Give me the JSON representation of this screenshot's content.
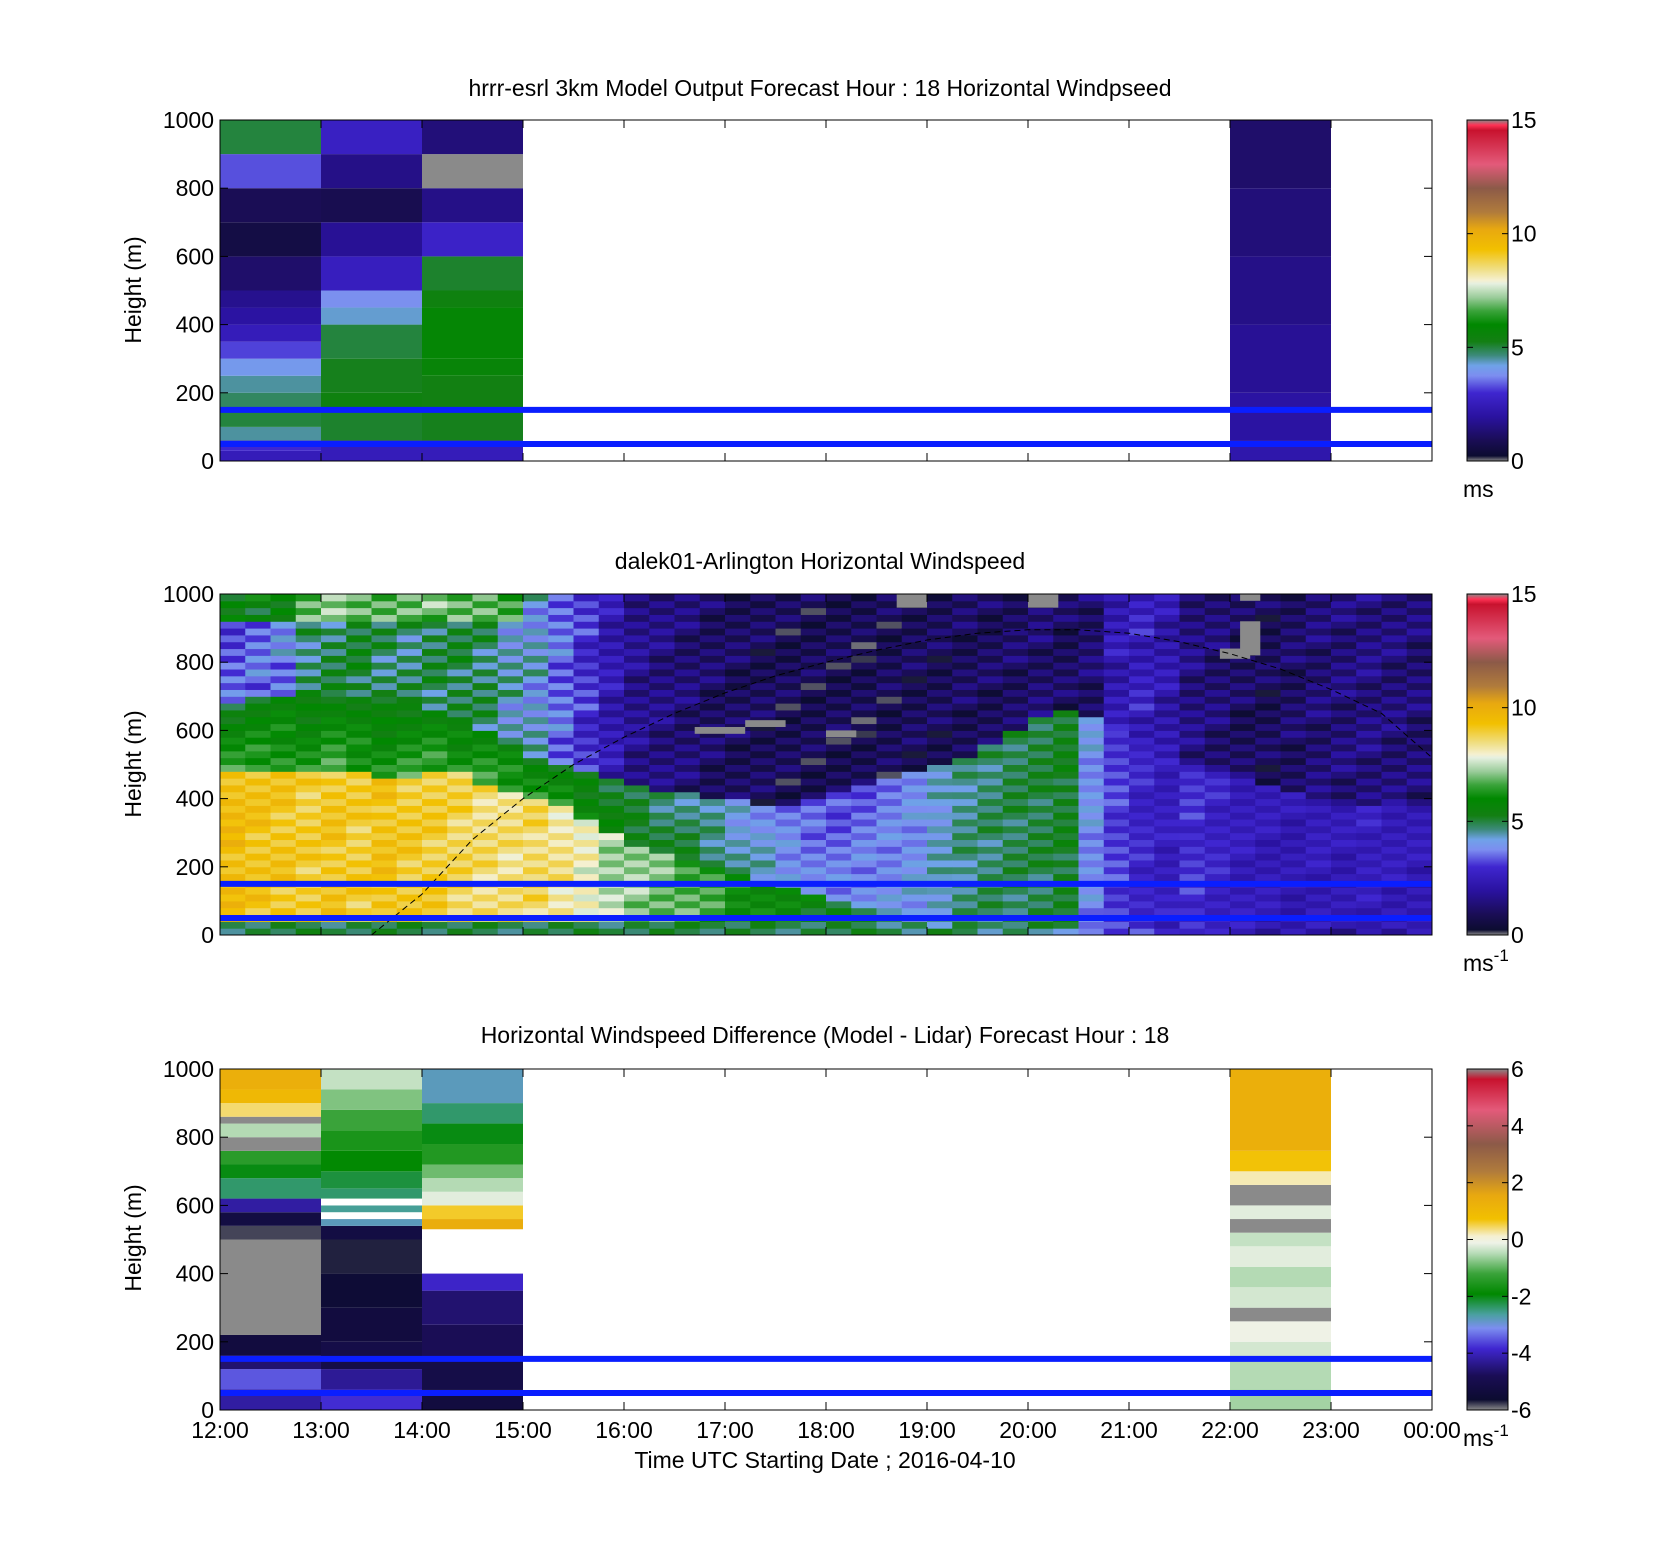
{
  "figure": {
    "xlabel": "Time UTC  Starting Date ; 2016-04-10",
    "xtick_labels": [
      "12:00",
      "13:00",
      "14:00",
      "15:00",
      "16:00",
      "17:00",
      "18:00",
      "19:00",
      "20:00",
      "21:00",
      "22:00",
      "23:00",
      "00:00"
    ]
  },
  "chart_data": [
    {
      "type": "heatmap",
      "title": "hrrr-esrl 3km Model Output   Forecast Hour : 18 Horizontal Windpseed",
      "ylabel": "Height (m)",
      "xlim": [
        "12:00",
        "00:00"
      ],
      "ylim": [
        0,
        1000
      ],
      "yticks": [
        0,
        200,
        400,
        600,
        800,
        1000
      ],
      "colorbar": {
        "range": [
          0,
          15
        ],
        "ticks": [
          0,
          5,
          10,
          15
        ],
        "unit_base": "ms",
        "unit_sup": ""
      },
      "reference_lines_m": [
        150,
        50
      ],
      "columns": [
        {
          "start": "12:00",
          "end": "13:00",
          "cells": [
            [
              0,
              30,
              2.5
            ],
            [
              30,
              60,
              3.0
            ],
            [
              60,
              100,
              4.5
            ],
            [
              100,
              150,
              5.0
            ],
            [
              150,
              200,
              4.8
            ],
            [
              200,
              250,
              4.5
            ],
            [
              250,
              300,
              4.0
            ],
            [
              300,
              350,
              3.2
            ],
            [
              350,
              400,
              2.5
            ],
            [
              400,
              450,
              2.0
            ],
            [
              450,
              500,
              1.7
            ],
            [
              500,
              600,
              1.2
            ],
            [
              600,
              700,
              0.6
            ],
            [
              700,
              800,
              0.9
            ],
            [
              800,
              900,
              3.3
            ],
            [
              900,
              1000,
              5.0
            ]
          ]
        },
        {
          "start": "13:00",
          "end": "14:00",
          "cells": [
            [
              0,
              60,
              2.5
            ],
            [
              60,
              150,
              5.1
            ],
            [
              150,
              200,
              5.4
            ],
            [
              200,
              300,
              5.2
            ],
            [
              300,
              400,
              5.0
            ],
            [
              400,
              450,
              4.3
            ],
            [
              450,
              500,
              3.8
            ],
            [
              500,
              600,
              2.6
            ],
            [
              600,
              700,
              1.8
            ],
            [
              700,
              800,
              0.8
            ],
            [
              800,
              900,
              1.6
            ],
            [
              900,
              1000,
              2.7
            ]
          ]
        },
        {
          "start": "14:00",
          "end": "15:00",
          "cells": [
            [
              0,
              60,
              2.5
            ],
            [
              60,
              150,
              5.2
            ],
            [
              150,
              250,
              5.3
            ],
            [
              250,
              300,
              5.7
            ],
            [
              300,
              450,
              5.8
            ],
            [
              450,
              500,
              5.4
            ],
            [
              500,
              600,
              5.1
            ],
            [
              600,
              700,
              2.8
            ],
            [
              700,
              800,
              1.6
            ],
            [
              800,
              900,
              -1
            ],
            [
              900,
              1000,
              1.4
            ]
          ]
        },
        {
          "start": "22:00",
          "end": "23:00",
          "cells": [
            [
              0,
              60,
              2.2
            ],
            [
              60,
              200,
              2.0
            ],
            [
              200,
              400,
              1.8
            ],
            [
              400,
              600,
              1.6
            ],
            [
              600,
              800,
              1.4
            ],
            [
              800,
              1000,
              1.2
            ]
          ]
        }
      ]
    },
    {
      "type": "heatmap",
      "title": "dalek01-Arlington  Horizontal Windspeed",
      "ylabel": "Height (m)",
      "xlim": [
        "12:00",
        "00:00"
      ],
      "ylim": [
        0,
        1000
      ],
      "yticks": [
        0,
        200,
        400,
        600,
        800,
        1000
      ],
      "colorbar": {
        "range": [
          0,
          15
        ],
        "ticks": [
          0,
          5,
          10,
          15
        ],
        "unit_base": "ms",
        "unit_sup": "-1"
      },
      "reference_lines_m": [
        150,
        50
      ],
      "time_height_profile": {
        "description_keys": [
          "hour",
          "columns"
        ],
        "hours": [
          "12:00",
          "12:15",
          "12:30",
          "12:45",
          "13:00",
          "13:15",
          "13:30",
          "13:45",
          "14:00",
          "14:15",
          "14:30",
          "14:45",
          "15:00",
          "15:15",
          "15:30",
          "15:45",
          "16:00",
          "16:15",
          "16:30",
          "16:45",
          "17:00",
          "17:15",
          "17:30",
          "17:45",
          "18:00",
          "18:15",
          "18:30",
          "18:45",
          "19:00",
          "19:15",
          "19:30",
          "19:45",
          "20:00",
          "20:15",
          "20:30",
          "20:45",
          "21:00",
          "21:15",
          "21:30",
          "21:45",
          "22:00",
          "22:15",
          "22:30",
          "22:45",
          "23:00",
          "23:15",
          "23:30",
          "23:45"
        ],
        "low_wind_top_m": [
          480,
          480,
          470,
          470,
          470,
          470,
          460,
          460,
          480,
          470,
          440,
          420,
          400,
          380,
          340,
          300,
          260,
          230,
          210,
          190,
          170,
          160,
          140,
          120,
          100,
          80,
          60,
          40,
          20,
          20,
          20,
          20,
          20,
          20,
          20,
          20,
          20,
          20,
          20,
          20,
          20,
          20,
          20,
          20,
          20,
          20,
          20,
          20
        ],
        "low_wind_speed": [
          9.5,
          9.3,
          9.2,
          9.0,
          9.2,
          9.0,
          9.3,
          9.1,
          9.0,
          8.8,
          8.6,
          8.5,
          8.7,
          8.4,
          8.0,
          7.4,
          7.2,
          7.0,
          6.8,
          6.5,
          6.2,
          6.0,
          5.8,
          5.6,
          5.4,
          5.2,
          5.0,
          4.8,
          4.9,
          5.0,
          4.8,
          4.7,
          4.6,
          4.7,
          3.5,
          3.2,
          3.0,
          2.8,
          3.1,
          2.6,
          2.4,
          2.2,
          2.3,
          2.1,
          2.0,
          2.2,
          2.0,
          2.1
        ],
        "mid_band_top_m": [
          680,
          690,
          700,
          710,
          700,
          690,
          700,
          680,
          650,
          620,
          600,
          560,
          520,
          500,
          480,
          450,
          430,
          420,
          410,
          400,
          390,
          380,
          380,
          400,
          420,
          440,
          460,
          480,
          500,
          520,
          560,
          600,
          640,
          660,
          640,
          600,
          560,
          520,
          500,
          480,
          460,
          440,
          420,
          400,
          380,
          380,
          380,
          380
        ],
        "mid_band_speed": [
          5.2,
          5.4,
          5.5,
          5.3,
          5.6,
          5.4,
          5.2,
          5.5,
          5.6,
          5.5,
          5.8,
          5.6,
          5.5,
          5.3,
          5.2,
          5.0,
          4.8,
          4.6,
          4.5,
          4.3,
          4.0,
          3.8,
          3.5,
          3.3,
          3.2,
          3.4,
          3.6,
          3.8,
          4.2,
          4.6,
          4.8,
          5.0,
          5.1,
          5.3,
          4.0,
          3.2,
          2.8,
          2.6,
          3.0,
          2.8,
          2.6,
          2.5,
          2.4,
          2.6,
          2.5,
          2.7,
          2.6,
          2.5
        ],
        "upper_speed": [
          3.4,
          3.6,
          3.8,
          4.8,
          5.0,
          5.2,
          4.9,
          4.8,
          5.0,
          5.1,
          4.9,
          4.4,
          4.2,
          3.6,
          3.0,
          2.4,
          1.8,
          1.6,
          1.4,
          1.2,
          1.1,
          1.0,
          0.9,
          0.9,
          0.9,
          0.8,
          0.9,
          1.0,
          1.0,
          1.1,
          1.1,
          1.2,
          1.3,
          1.1,
          1.3,
          2.4,
          2.6,
          2.3,
          1.6,
          1.4,
          1.1,
          1.0,
          1.2,
          1.4,
          1.5,
          1.6,
          1.5,
          1.4
        ],
        "missing_segments": [
          [
            16.7,
            17.2,
            590,
            610
          ],
          [
            17.2,
            17.6,
            610,
            630
          ],
          [
            18.0,
            18.3,
            580,
            600
          ],
          [
            21.9,
            22.2,
            810,
            840
          ],
          [
            22.1,
            22.3,
            820,
            920
          ],
          [
            22.1,
            22.3,
            980,
            1000
          ],
          [
            20.0,
            20.3,
            960,
            1000
          ],
          [
            18.7,
            19.0,
            960,
            1000
          ]
        ]
      },
      "overlay_curve": {
        "style": "dashed",
        "points": [
          [
            13.5,
            0
          ],
          [
            14.0,
            120
          ],
          [
            14.5,
            280
          ],
          [
            15.0,
            400
          ],
          [
            15.5,
            500
          ],
          [
            16.0,
            580
          ],
          [
            16.5,
            650
          ],
          [
            17.0,
            710
          ],
          [
            17.5,
            760
          ],
          [
            18.0,
            800
          ],
          [
            18.5,
            835
          ],
          [
            19.0,
            865
          ],
          [
            19.5,
            885
          ],
          [
            20.0,
            895
          ],
          [
            20.5,
            895
          ],
          [
            21.0,
            885
          ],
          [
            21.5,
            860
          ],
          [
            22.0,
            825
          ],
          [
            22.5,
            780
          ],
          [
            23.0,
            720
          ],
          [
            23.5,
            650
          ],
          [
            24.0,
            520
          ]
        ]
      }
    },
    {
      "type": "heatmap",
      "title": "Horizontal Windspeed Difference (Model - Lidar) Forecast Hour : 18",
      "ylabel": "Height (m)",
      "xlim": [
        "12:00",
        "00:00"
      ],
      "ylim": [
        0,
        1000
      ],
      "yticks": [
        0,
        200,
        400,
        600,
        800,
        1000
      ],
      "colorbar": {
        "range": [
          -6,
          6
        ],
        "ticks": [
          -6,
          -4,
          -2,
          0,
          2,
          4,
          6
        ],
        "unit_base": "ms",
        "unit_sup": "-1"
      },
      "reference_lines_m": [
        150,
        50
      ],
      "columns": [
        {
          "start": "12:00",
          "end": "13:00",
          "cells": [
            [
              0,
              60,
              -4.2
            ],
            [
              60,
              120,
              -3.5
            ],
            [
              120,
              160,
              -4.6
            ],
            [
              160,
              220,
              -5.3
            ],
            [
              220,
              500,
              -9
            ],
            [
              500,
              540,
              -5.8
            ],
            [
              540,
              580,
              -5.2
            ],
            [
              580,
              620,
              -4.2
            ],
            [
              620,
              680,
              -2.4
            ],
            [
              680,
              720,
              -2.0
            ],
            [
              720,
              760,
              -1.4
            ],
            [
              760,
              800,
              -1.0
            ],
            [
              800,
              840,
              -0.5
            ],
            [
              840,
              860,
              -9
            ],
            [
              860,
              900,
              0.4
            ],
            [
              900,
              940,
              1.0
            ],
            [
              940,
              1000,
              1.3
            ]
          ]
        },
        {
          "start": "13:00",
          "end": "14:00",
          "cells": [
            [
              0,
              60,
              -3.8
            ],
            [
              60,
              120,
              -4.3
            ],
            [
              120,
              200,
              -5.1
            ],
            [
              200,
              300,
              -5.3
            ],
            [
              300,
              400,
              -5.5
            ],
            [
              400,
              500,
              -5.7
            ],
            [
              500,
              540,
              -5.2
            ],
            [
              540,
              560,
              -2.8
            ],
            [
              560,
              580,
              -99
            ],
            [
              580,
              600,
              -2.6
            ],
            [
              600,
              620,
              -99
            ],
            [
              620,
              650,
              -2.4
            ],
            [
              650,
              700,
              -2.2
            ],
            [
              700,
              760,
              -1.9
            ],
            [
              760,
              820,
              -1.6
            ],
            [
              820,
              880,
              -1.2
            ],
            [
              880,
              940,
              -0.8
            ],
            [
              940,
              1000,
              -0.4
            ]
          ]
        },
        {
          "start": "14:00",
          "end": "15:00",
          "cells": [
            [
              0,
              60,
              -5.3
            ],
            [
              60,
              150,
              -5.1
            ],
            [
              150,
              250,
              -4.8
            ],
            [
              250,
              350,
              -4.6
            ],
            [
              350,
              400,
              -3.9
            ],
            [
              530,
              560,
              1.4
            ],
            [
              560,
              600,
              0.6
            ],
            [
              600,
              640,
              -0.2
            ],
            [
              640,
              680,
              -0.5
            ],
            [
              680,
              720,
              -0.9
            ],
            [
              720,
              780,
              -1.5
            ],
            [
              780,
              840,
              -2.0
            ],
            [
              840,
              900,
              -2.4
            ],
            [
              900,
              1000,
              -2.8
            ]
          ]
        },
        {
          "start": "22:00",
          "end": "23:00",
          "cells": [
            [
              0,
              60,
              -0.6
            ],
            [
              60,
              150,
              -0.5
            ],
            [
              150,
              200,
              -0.3
            ],
            [
              200,
              260,
              -0.1
            ],
            [
              260,
              300,
              -9
            ],
            [
              300,
              360,
              -0.3
            ],
            [
              360,
              420,
              -0.5
            ],
            [
              420,
              480,
              -0.2
            ],
            [
              480,
              520,
              -0.4
            ],
            [
              520,
              560,
              -9
            ],
            [
              560,
              600,
              -0.2
            ],
            [
              600,
              660,
              -9
            ],
            [
              660,
              700,
              0.2
            ],
            [
              700,
              760,
              0.7
            ],
            [
              760,
              1000,
              1.3
            ]
          ]
        }
      ]
    }
  ]
}
